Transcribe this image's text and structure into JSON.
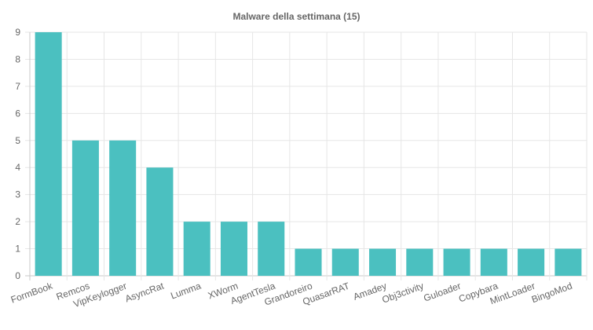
{
  "chart_data": {
    "type": "bar",
    "title": "Malware della settimana (15)",
    "xlabel": "",
    "ylabel": "",
    "ylim": [
      0,
      9
    ],
    "yticks": [
      0,
      1,
      2,
      3,
      4,
      5,
      6,
      7,
      8,
      9
    ],
    "grid": true,
    "legend": "none",
    "bar_color": "#4bc0c0",
    "categories": [
      "FormBook",
      "Remcos",
      "VipKeylogger",
      "AsyncRat",
      "Lumma",
      "XWorm",
      "AgentTesla",
      "Grandoreiro",
      "QuasarRAT",
      "Amadey",
      "Obj3ctivity",
      "Guloader",
      "Copybara",
      "MintLoader",
      "BingoMod"
    ],
    "values": [
      9,
      5,
      5,
      4,
      2,
      2,
      2,
      1,
      1,
      1,
      1,
      1,
      1,
      1,
      1
    ]
  }
}
